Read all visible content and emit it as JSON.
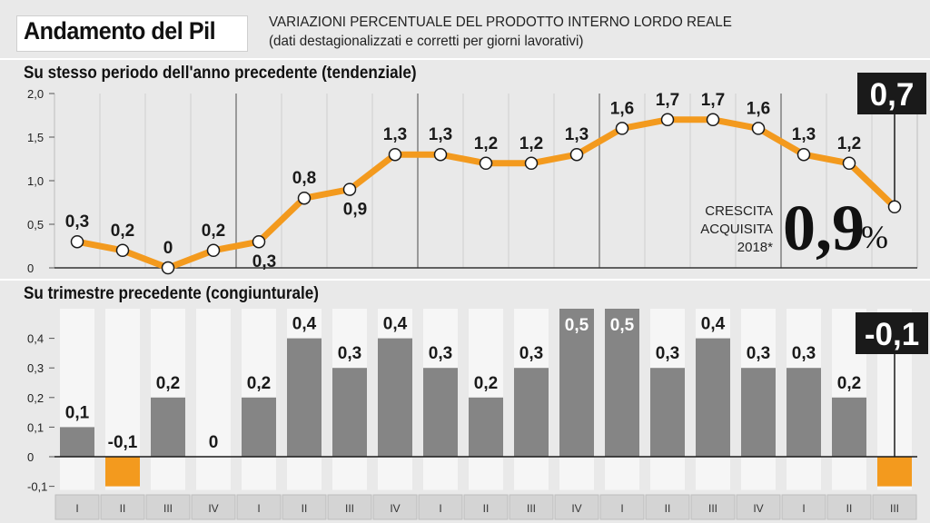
{
  "header": {
    "title": "Andamento del Pil",
    "subtitle_line1": "VARIAZIONI PERCENTUALE DEL PRODOTTO INTERNO LORDO REALE",
    "subtitle_line2": "(dati destagionalizzati e corretti per giorni lavorativi)"
  },
  "colors": {
    "accent": "#f39a1e",
    "bar": "#858585",
    "callout_bg": "#1a1a1a",
    "panel_bg": "#e9e9e9"
  },
  "chart_data": [
    {
      "type": "line",
      "title": "Su stesso periodo dell'anno precedente (tendenziale)",
      "categories": [
        "I",
        "II",
        "III",
        "IV",
        "I",
        "II",
        "III",
        "IV",
        "I",
        "II",
        "III",
        "IV",
        "I",
        "II",
        "III",
        "IV",
        "I",
        "II",
        "III"
      ],
      "values": [
        0.3,
        0.2,
        0.0,
        0.2,
        0.3,
        0.8,
        0.9,
        1.3,
        1.3,
        1.2,
        1.2,
        1.3,
        1.6,
        1.7,
        1.7,
        1.6,
        1.3,
        1.2,
        0.7
      ],
      "value_labels": [
        "0,3",
        "0,2",
        "0",
        "0,2",
        "0,3",
        "0,8",
        "0,9",
        "1,3",
        "1,3",
        "1,2",
        "1,2",
        "1,3",
        "1,6",
        "1,7",
        "1,7",
        "1,6",
        "1,3",
        "1,2",
        "0,7"
      ],
      "label_positions": [
        "above",
        "above",
        "above",
        "above",
        "below",
        "above",
        "below",
        "above",
        "above",
        "above",
        "above",
        "above",
        "above",
        "above",
        "above",
        "above",
        "above",
        "above",
        "callout"
      ],
      "y_ticks": [
        0,
        0.5,
        1.0,
        1.5,
        2.0
      ],
      "y_tick_labels": [
        "0",
        "0,5",
        "1,0",
        "1,5",
        "2,0"
      ],
      "ylim": [
        0,
        2.0
      ],
      "grid": "vertical-year-separators",
      "annotation": {
        "label_lines": [
          "CRESCITA",
          "ACQUISITA",
          "2018*"
        ],
        "value": "0,9",
        "unit": "%"
      }
    },
    {
      "type": "bar",
      "title": "Su trimestre precedente (congiunturale)",
      "categories": [
        "I",
        "II",
        "III",
        "IV",
        "I",
        "II",
        "III",
        "IV",
        "I",
        "II",
        "III",
        "IV",
        "I",
        "II",
        "III",
        "IV",
        "I",
        "II",
        "III"
      ],
      "values": [
        0.1,
        -0.1,
        0.2,
        0.0,
        0.2,
        0.4,
        0.3,
        0.4,
        0.3,
        0.2,
        0.3,
        0.5,
        0.5,
        0.3,
        0.4,
        0.3,
        0.3,
        0.2,
        -0.1
      ],
      "value_labels": [
        "0,1",
        "-0,1",
        "0,2",
        "0",
        "0,2",
        "0,4",
        "0,3",
        "0,4",
        "0,3",
        "0,2",
        "0,3",
        "0,5",
        "0,5",
        "0,3",
        "0,4",
        "0,3",
        "0,3",
        "0,2",
        "-0,1"
      ],
      "label_positions": [
        "above",
        "above",
        "above",
        "above",
        "above",
        "above",
        "above",
        "above",
        "above",
        "above",
        "above",
        "inside",
        "inside",
        "above",
        "above",
        "above",
        "above",
        "above",
        "callout"
      ],
      "y_ticks": [
        -0.1,
        0,
        0.1,
        0.2,
        0.3,
        0.4
      ],
      "y_tick_labels": [
        "-0,1",
        "0",
        "0,1",
        "0,2",
        "0,3",
        "0,4"
      ],
      "ylim": [
        -0.1,
        0.5
      ],
      "negative_color": "#f39a1e",
      "positive_color": "#858585"
    }
  ]
}
